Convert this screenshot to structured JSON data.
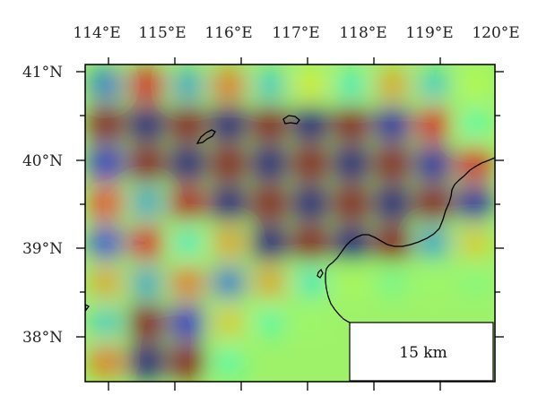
{
  "map": {
    "lon_labels": [
      "114°E",
      "115°E",
      "116°E",
      "117°E",
      "118°E",
      "119°E",
      "120°E"
    ],
    "lat_labels": [
      "41°N",
      "40°N",
      "39°N",
      "38°N"
    ],
    "lon_range": [
      113.8,
      120.2
    ],
    "lat_range": [
      37.5,
      41.08
    ],
    "scale_label": "15 km",
    "colormap": "jet",
    "checkerboard": {
      "description_visible": false,
      "anomaly_grid": [
        [
          -0.6,
          0.8,
          -0.5,
          0.6,
          -0.4,
          0.3,
          -0.3,
          0.5,
          -0.4,
          0.15
        ],
        [
          1.0,
          -1.0,
          1.0,
          -1.0,
          1.0,
          -1.0,
          1.0,
          -0.9,
          0.8,
          -0.2
        ],
        [
          -0.8,
          1.0,
          -1.0,
          1.0,
          -1.0,
          1.0,
          -1.0,
          1.0,
          -0.9,
          0.8
        ],
        [
          0.7,
          -0.5,
          0.9,
          -1.0,
          1.0,
          -1.0,
          1.0,
          -1.0,
          1.0,
          -0.9
        ],
        [
          -0.7,
          0.8,
          -0.3,
          0.5,
          -1.0,
          1.0,
          -1.0,
          1.0,
          -0.5,
          0.4
        ],
        [
          0.5,
          -0.5,
          0.6,
          -0.6,
          0.5,
          -0.3,
          0.1,
          -0.1,
          0.05,
          -0.05
        ],
        [
          -0.4,
          1.0,
          -0.8,
          0.4,
          -0.2,
          0.05,
          0.0,
          0.0,
          0.0,
          0.0
        ],
        [
          0.6,
          -1.0,
          1.0,
          -0.2,
          0.0,
          0.0,
          0.0,
          0.0,
          0.0,
          0.0
        ]
      ]
    }
  }
}
